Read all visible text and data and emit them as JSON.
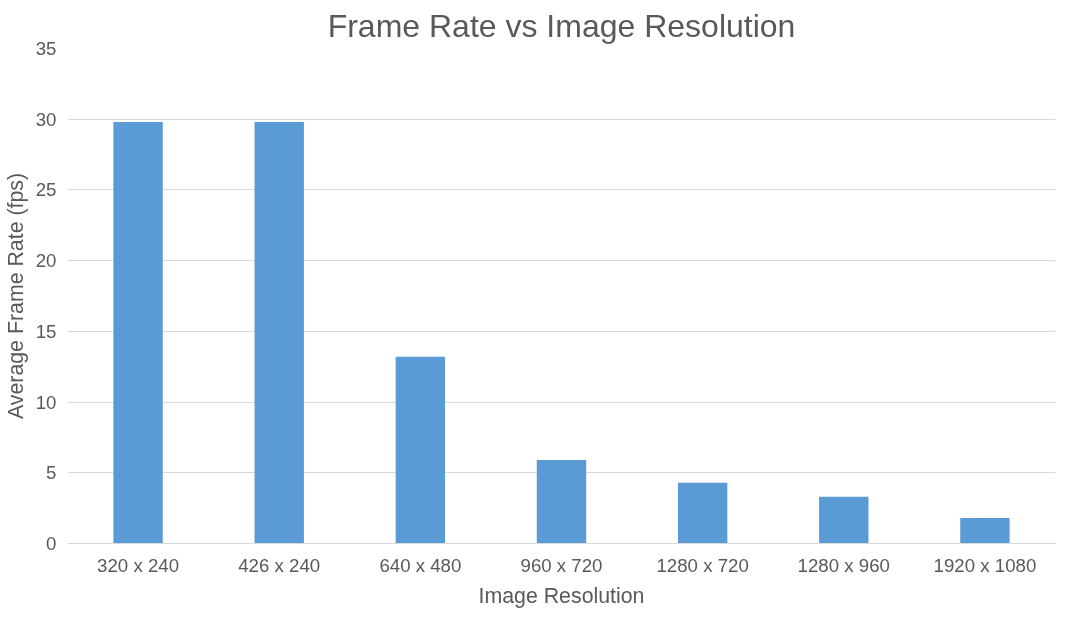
{
  "chart_data": {
    "type": "bar",
    "title": "Frame Rate vs Image Resolution",
    "xlabel": "Image Resolution",
    "ylabel": "Average Frame Rate (fps)",
    "categories": [
      "320 x 240",
      "426 x 240",
      "640 x 480",
      "960 x 720",
      "1280 x 720",
      "1280 x 960",
      "1920 x 1080"
    ],
    "values": [
      29.8,
      29.8,
      13.2,
      5.9,
      4.3,
      3.3,
      1.8
    ],
    "color": "#5b9bd5",
    "ylim": [
      0,
      35
    ],
    "yticks": [
      0,
      5,
      10,
      15,
      20,
      25,
      30,
      35
    ],
    "grid": "y"
  }
}
